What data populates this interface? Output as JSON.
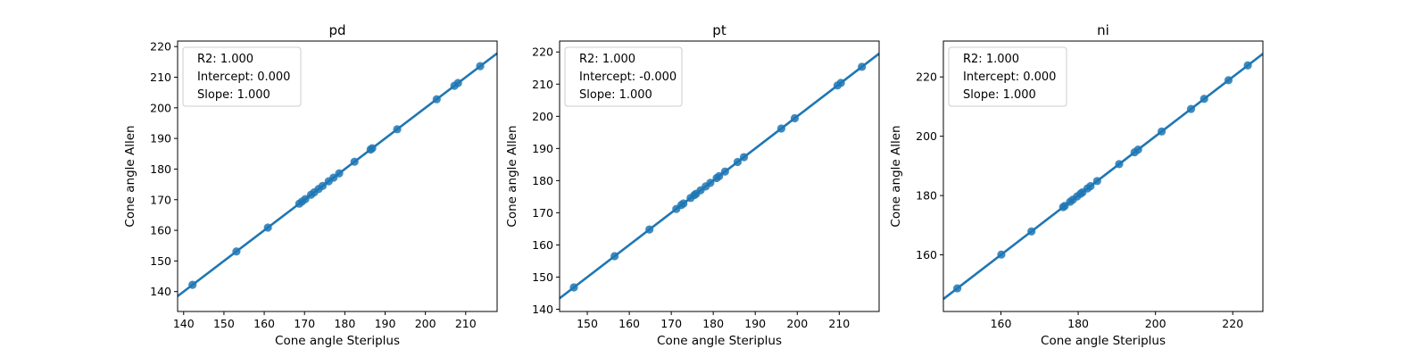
{
  "chart_data": [
    {
      "type": "scatter",
      "title": "pd",
      "xlabel": "Cone angle Steriplus",
      "ylabel": "Cone angle Allen",
      "xlim": [
        138.5,
        217.8
      ],
      "ylim": [
        133.5,
        221.8
      ],
      "xticks": [
        140,
        150,
        160,
        170,
        180,
        190,
        200,
        210
      ],
      "yticks": [
        140,
        150,
        160,
        170,
        180,
        190,
        200,
        210,
        220
      ],
      "legend": [
        "R2: 1.000",
        "Intercept: 0.000",
        "Slope: 1.000"
      ],
      "legend_position": "top-left",
      "grid": false,
      "color": "#1f77b4",
      "fit": {
        "intercept": 0.0,
        "slope": 1.0
      },
      "series": [
        {
          "x": [
            142.2,
            153.1,
            160.9,
            168.7,
            169.4,
            170.2,
            171.6,
            172.4,
            173.5,
            174.5,
            176.0,
            177.2,
            178.6,
            182.4,
            186.4,
            186.8,
            193.0,
            202.8,
            207.2,
            208.1,
            213.6
          ],
          "y": [
            142.2,
            153.1,
            160.9,
            168.7,
            169.4,
            170.2,
            171.6,
            172.4,
            173.5,
            174.5,
            176.0,
            177.2,
            178.6,
            182.4,
            186.4,
            186.8,
            193.0,
            202.8,
            207.2,
            208.1,
            213.6
          ]
        }
      ]
    },
    {
      "type": "scatter",
      "title": "pt",
      "xlabel": "Cone angle Steriplus",
      "ylabel": "Cone angle Allen",
      "xlim": [
        143.4,
        219.5
      ],
      "ylim": [
        139.3,
        223.4
      ],
      "xticks": [
        150,
        160,
        170,
        180,
        190,
        200,
        210
      ],
      "yticks": [
        140,
        150,
        160,
        170,
        180,
        190,
        200,
        210,
        220
      ],
      "legend": [
        "R2: 1.000",
        "Intercept: -0.000",
        "Slope: 1.000"
      ],
      "legend_position": "top-left",
      "grid": false,
      "color": "#1f77b4",
      "fit": {
        "intercept": 0.0,
        "slope": 1.0
      },
      "series": [
        {
          "x": [
            146.8,
            156.5,
            164.8,
            171.2,
            172.4,
            172.9,
            174.6,
            175.5,
            175.9,
            177.0,
            178.2,
            179.3,
            180.8,
            181.4,
            182.8,
            185.8,
            187.3,
            196.2,
            199.4,
            209.6,
            210.4,
            215.4
          ],
          "y": [
            146.8,
            156.5,
            164.8,
            171.2,
            172.4,
            172.9,
            174.6,
            175.5,
            175.9,
            177.0,
            178.2,
            179.3,
            180.8,
            181.4,
            182.8,
            185.8,
            187.3,
            196.2,
            199.4,
            209.6,
            210.4,
            215.4
          ]
        }
      ]
    },
    {
      "type": "scatter",
      "title": "ni",
      "xlabel": "Cone angle Steriplus",
      "ylabel": "Cone angle Allen",
      "xlim": [
        145.1,
        227.8
      ],
      "ylim": [
        140.9,
        232.1
      ],
      "xticks": [
        160,
        180,
        200,
        220
      ],
      "yticks": [
        160,
        180,
        200,
        220
      ],
      "legend": [
        "R2: 1.000",
        "Intercept: 0.000",
        "Slope: 1.000"
      ],
      "legend_position": "top-left",
      "grid": false,
      "color": "#1f77b4",
      "fit": {
        "intercept": 0.0,
        "slope": 1.0
      },
      "series": [
        {
          "x": [
            148.7,
            160.1,
            167.9,
            176.1,
            176.5,
            177.9,
            178.6,
            179.7,
            180.6,
            181.1,
            182.4,
            183.2,
            184.9,
            190.6,
            194.6,
            195.5,
            201.6,
            209.2,
            212.6,
            218.9,
            223.9
          ],
          "y": [
            148.7,
            160.1,
            167.9,
            176.1,
            176.5,
            177.9,
            178.6,
            179.7,
            180.6,
            181.1,
            182.4,
            183.2,
            184.9,
            190.6,
            194.6,
            195.5,
            201.6,
            209.2,
            212.6,
            218.9,
            223.9
          ]
        }
      ]
    }
  ]
}
